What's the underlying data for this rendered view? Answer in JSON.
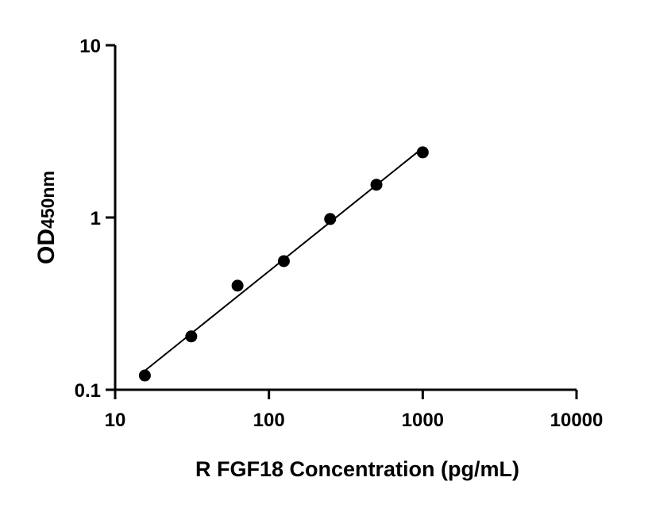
{
  "chart_data": {
    "type": "scatter",
    "title": "",
    "xlabel": "R FGF18 Concentration (pg/mL)",
    "ylabel_main": "OD",
    "ylabel_sub": "450nm",
    "xscale": "log",
    "yscale": "log",
    "xlim": [
      10,
      10000
    ],
    "ylim": [
      0.1,
      10
    ],
    "xticks": [
      "10",
      "100",
      "1000",
      "10000"
    ],
    "yticks": [
      "0.1",
      "1",
      "10"
    ],
    "grid": false,
    "legend": "none",
    "series": [
      {
        "x": [
          15.6,
          31.25,
          62.5,
          125,
          250,
          500,
          1000
        ],
        "y": [
          0.121,
          0.204,
          0.402,
          0.558,
          0.98,
          1.55,
          2.39
        ],
        "marker": "circle",
        "fit_line": true,
        "color": "#000000"
      }
    ]
  }
}
